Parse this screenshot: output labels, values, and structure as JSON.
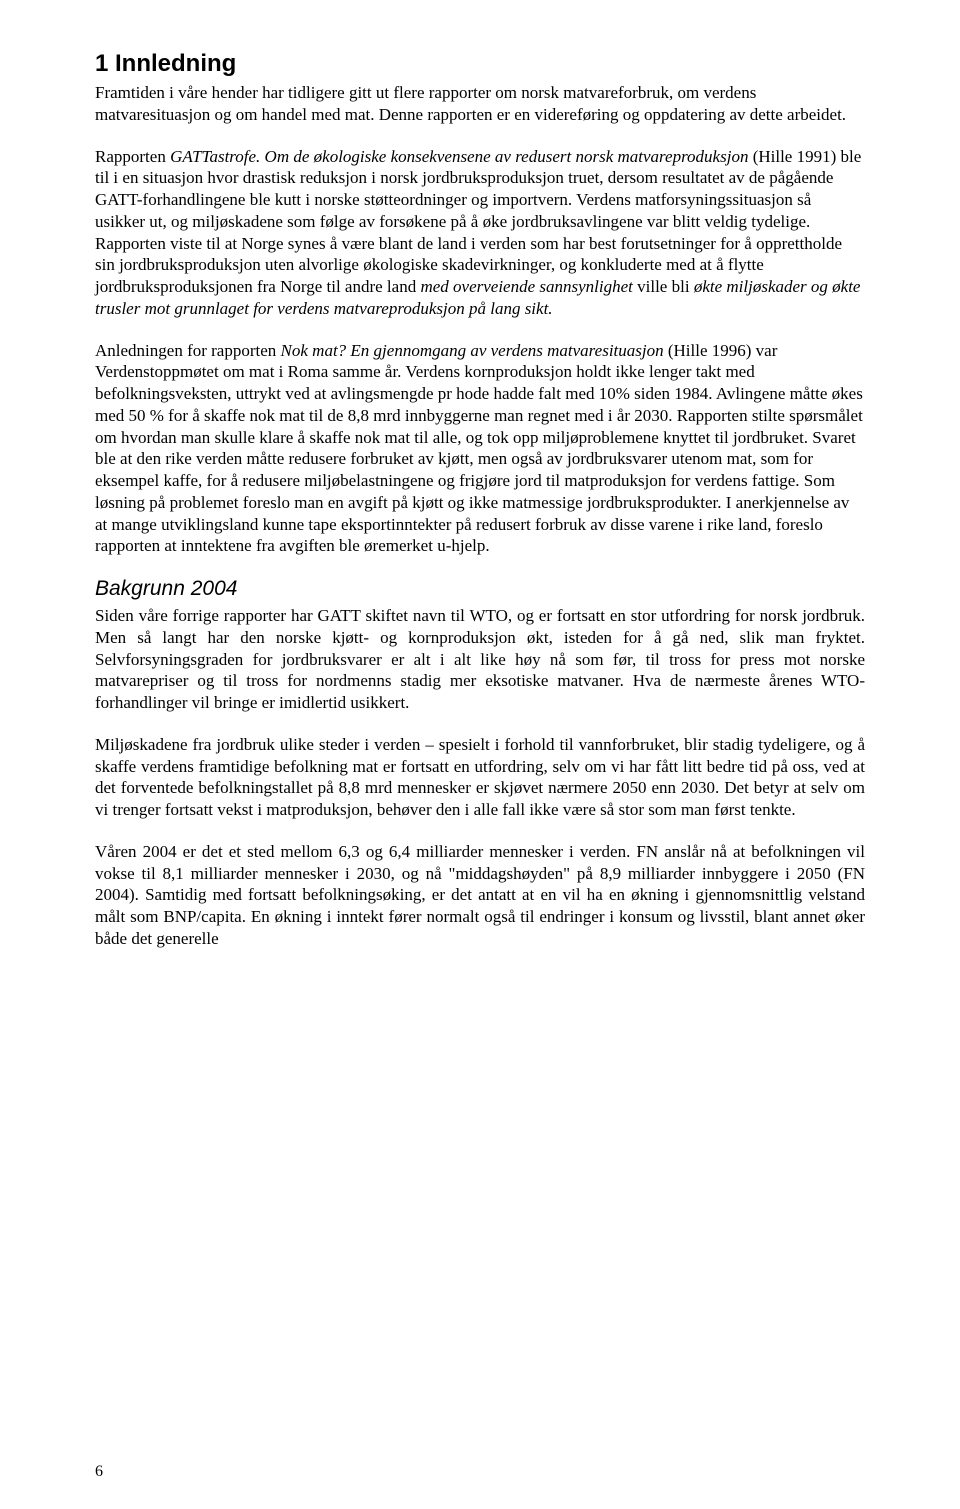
{
  "heading": "1 Innledning",
  "para1": "Framtiden i våre hender har tidligere gitt ut flere rapporter om norsk matvareforbruk, om verdens matvaresituasjon og om handel med mat. Denne rapporten er en videreføring og oppdatering av dette arbeidet.",
  "para2_pre": "Rapporten ",
  "para2_title": "GATTastrofe. Om de økologiske konsekvensene av redusert norsk matvareproduksjon",
  "para2_mid1": " (Hille 1991) ble til i en situasjon hvor drastisk reduksjon i norsk jordbruksproduksjon truet, dersom resultatet av de pågående GATT-forhandlingene ble kutt i norske støtteordninger og importvern. Verdens matforsyningssituasjon så usikker ut, og miljøskadene som følge av forsøkene på å øke jordbruksavlingene var blitt veldig tydelige. Rapporten viste til at Norge synes å være blant de land i verden som har best forutsetninger for å opprettholde sin jordbruksproduksjon uten alvorlige økologiske skadevirkninger, og konkluderte med at å flytte jordbruksproduksjonen fra Norge til andre land ",
  "para2_italic2": "med overveiende sannsynlighet",
  "para2_mid2": " ville bli ",
  "para2_italic3": "økte miljøskader og økte trusler mot grunnlaget for verdens matvareproduksjon på lang sikt.",
  "para3_pre": "Anledningen for rapporten ",
  "para3_title": "Nok mat? En gjennomgang av verdens matvaresituasjon",
  "para3_rest": " (Hille 1996) var Verdenstoppmøtet om mat i Roma samme år. Verdens kornproduksjon holdt ikke lenger takt med befolkningsveksten, uttrykt ved at avlingsmengde pr hode hadde falt med 10% siden 1984. Avlingene måtte økes med 50 % for å skaffe nok mat til de 8,8 mrd innbyggerne man regnet med i år 2030. Rapporten stilte spørsmålet om hvordan man skulle klare å skaffe nok mat til alle, og tok opp miljøproblemene knyttet til jordbruket. Svaret ble at den rike verden måtte redusere forbruket av kjøtt, men også av jordbruksvarer utenom mat, som for eksempel kaffe, for å redusere miljøbelastningene og frigjøre jord til matproduksjon for verdens fattige. Som løsning på problemet foreslo man en avgift på kjøtt og ikke matmessige jordbruksprodukter. I anerkjennelse av at mange utviklingsland kunne tape eksportinntekter på redusert forbruk av disse varene i rike land, foreslo rapporten at inntektene fra avgiften ble øremerket u-hjelp.",
  "subhead": "Bakgrunn 2004",
  "para4": "Siden våre forrige rapporter har GATT skiftet navn til WTO, og er fortsatt en stor utfordring for norsk jordbruk. Men så langt har den norske kjøtt- og kornproduksjon økt, isteden for å gå ned, slik man fryktet. Selvforsyningsgraden for jordbruksvarer er alt i alt like høy nå som før, til tross for press mot norske matvarepriser og til tross for nordmenns stadig mer eksotiske matvaner. Hva de nærmeste årenes WTO-forhandlinger vil bringe er imidlertid usikkert.",
  "para5": "Miljøskadene fra jordbruk ulike steder i verden – spesielt i forhold til vannforbruket, blir stadig tydeligere, og å skaffe verdens framtidige befolkning mat er fortsatt en utfordring, selv om vi har fått litt bedre tid på oss, ved at det forventede befolkningstallet på 8,8 mrd mennesker er skjøvet nærmere 2050 enn 2030. Det betyr at selv om vi trenger fortsatt vekst i matproduksjon, behøver den i alle fall ikke være så stor som man først tenkte.",
  "para6": "Våren 2004 er det et sted mellom 6,3 og 6,4 milliarder mennesker i verden. FN anslår nå at befolkningen vil vokse til 8,1 milliarder mennesker i 2030, og nå \"middagshøyden\" på 8,9 milliarder innbyggere i 2050 (FN 2004). Samtidig med fortsatt befolkningsøking, er det antatt at en vil ha en økning i gjennomsnittlig velstand målt som BNP/capita. En økning i inntekt fører normalt også til endringer i konsum og livsstil, blant annet øker både det generelle",
  "pageNumber": "6"
}
